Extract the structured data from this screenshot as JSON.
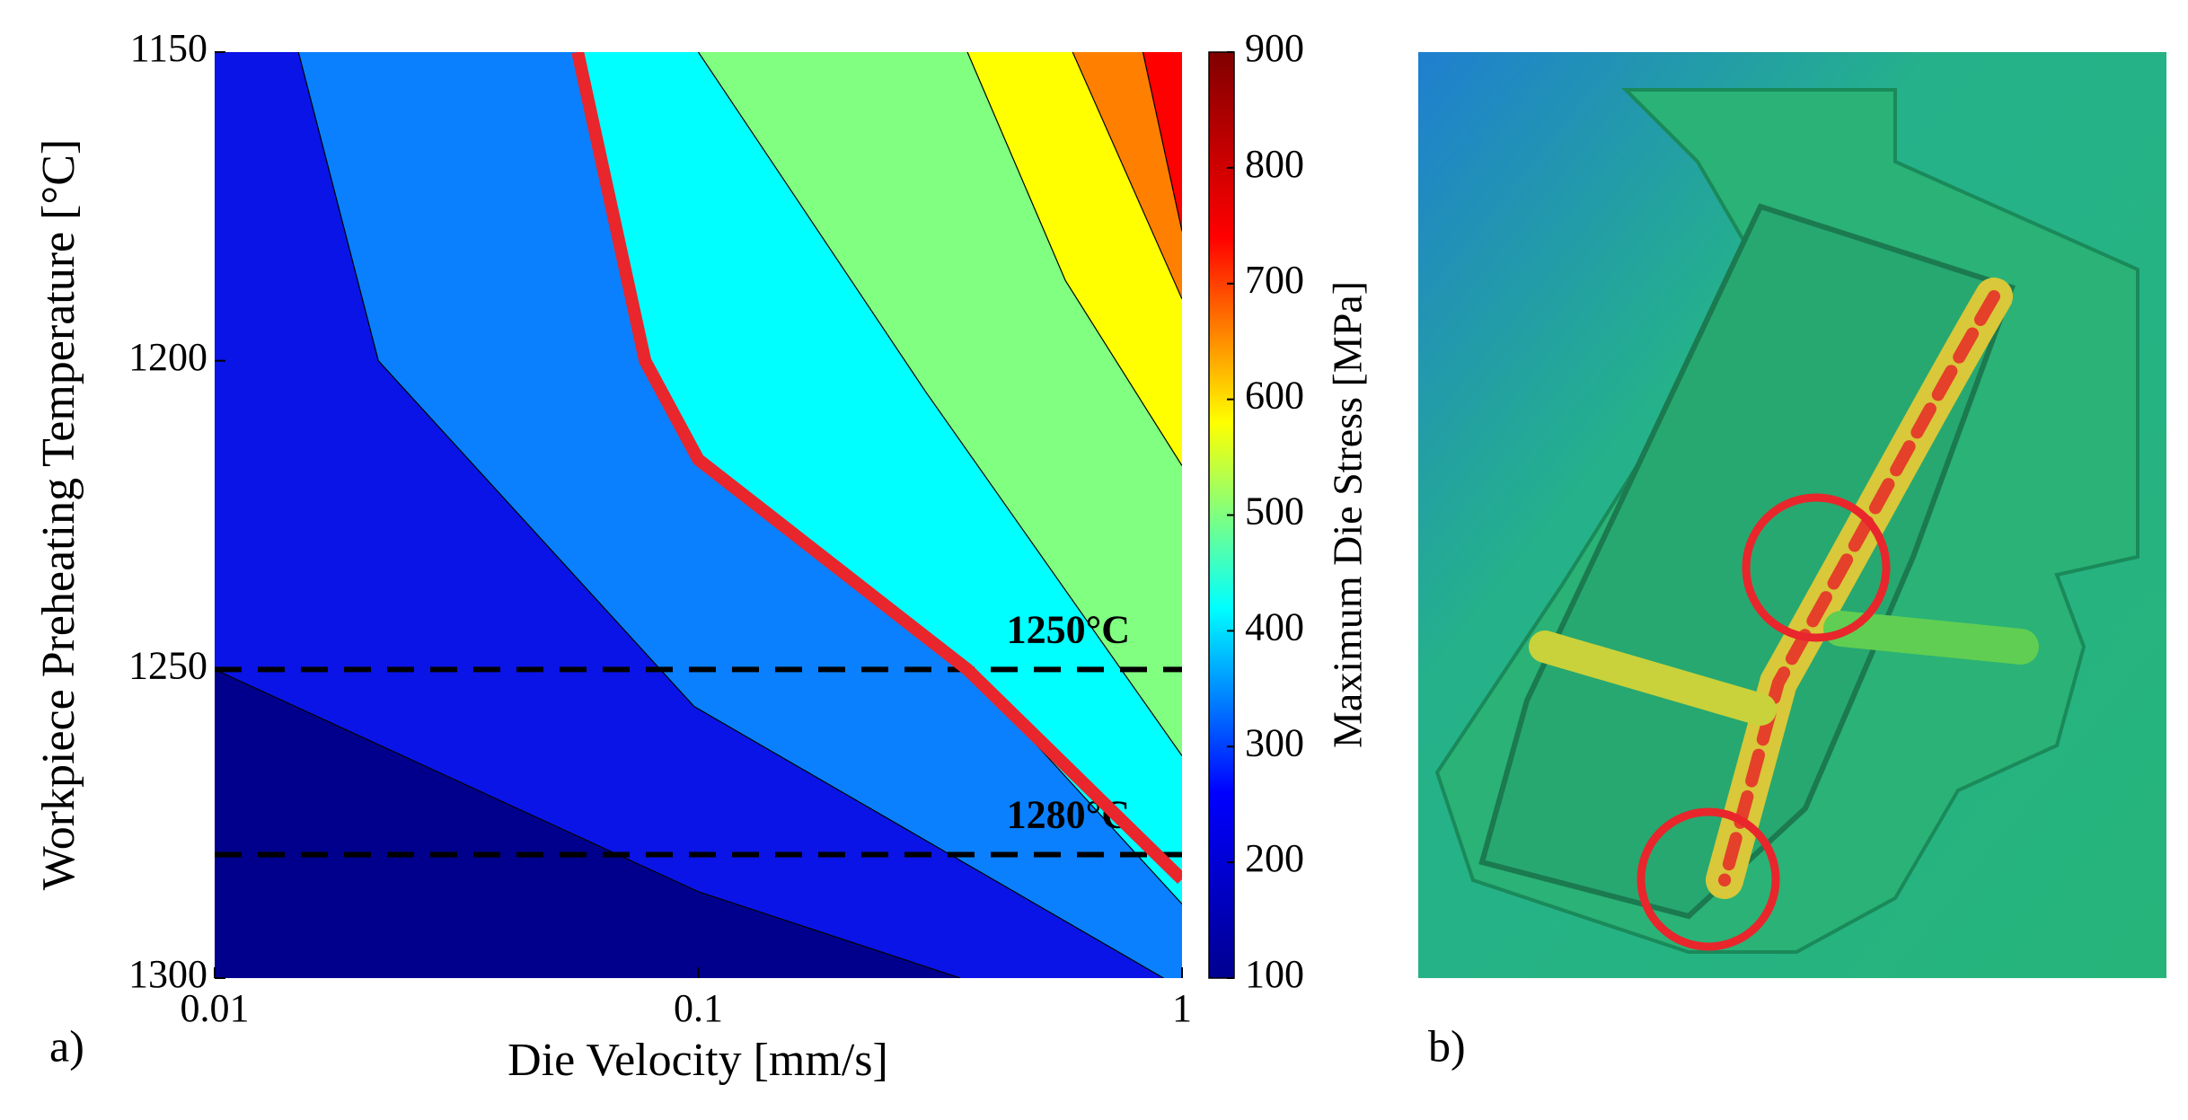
{
  "chart_data": {
    "type": "contour",
    "xlabel": "Die Velocity [mm/s]",
    "ylabel": "Workpiece Preheating Temperature [°C]",
    "xscale": "log",
    "xlim": [
      0.01,
      1
    ],
    "xticks": [
      0.01,
      0.1,
      1
    ],
    "ylim": [
      1150,
      1300
    ],
    "yticks": [
      1150,
      1200,
      1250,
      1300
    ],
    "yreverse": true,
    "colors": [
      "#00008c",
      "#0a14e6",
      "#0a80ff",
      "#00ffff",
      "#80ff80",
      "#ffff00",
      "#ff8000",
      "#ff0000"
    ],
    "contours": [
      {
        "level": 200,
        "x": [
          0.01,
          0.1,
          0.348
        ],
        "y": [
          1250,
          1286,
          1300
        ]
      },
      {
        "level": 300,
        "x": [
          0.0149,
          0.0218,
          0.098,
          0.916
        ],
        "y": [
          1150,
          1200,
          1256,
          1300
        ]
      },
      {
        "level": 400,
        "x": [
          0.0563,
          0.0776,
          0.1,
          0.36,
          1
        ],
        "y": [
          1150,
          1200,
          1217,
          1250,
          1288
        ]
      },
      {
        "level": 500,
        "x": [
          0.1,
          0.295,
          1
        ],
        "y": [
          1150,
          1205,
          1264
        ]
      },
      {
        "level": 600,
        "x": [
          0.36,
          0.574,
          1
        ],
        "y": [
          1150,
          1187,
          1217
        ]
      },
      {
        "level": 700,
        "x": [
          0.594,
          1
        ],
        "y": [
          1150,
          1190
        ]
      },
      {
        "level": 800,
        "x": [
          0.83,
          1
        ],
        "y": [
          1150,
          1179
        ]
      }
    ],
    "limit_line": {
      "color": "#e8262c",
      "x": [
        0.0563,
        0.0776,
        0.1,
        0.36,
        1
      ],
      "y": [
        1150,
        1200,
        1216,
        1250,
        1284
      ]
    },
    "hlines": [
      {
        "y": 1250,
        "label": "1250°C"
      },
      {
        "y": 1280,
        "label": "1280°C"
      }
    ],
    "colorbar": {
      "label": "Maximum Die Stress [MPa]",
      "lim": [
        100,
        900
      ],
      "ticks": [
        100,
        200,
        300,
        400,
        500,
        600,
        700,
        800,
        900
      ],
      "colors": [
        "#00008f",
        "#0000ff",
        "#00ffff",
        "#ffff00",
        "#ff0000",
        "#800000"
      ]
    },
    "panel_labels": [
      "a)",
      "b)"
    ]
  }
}
